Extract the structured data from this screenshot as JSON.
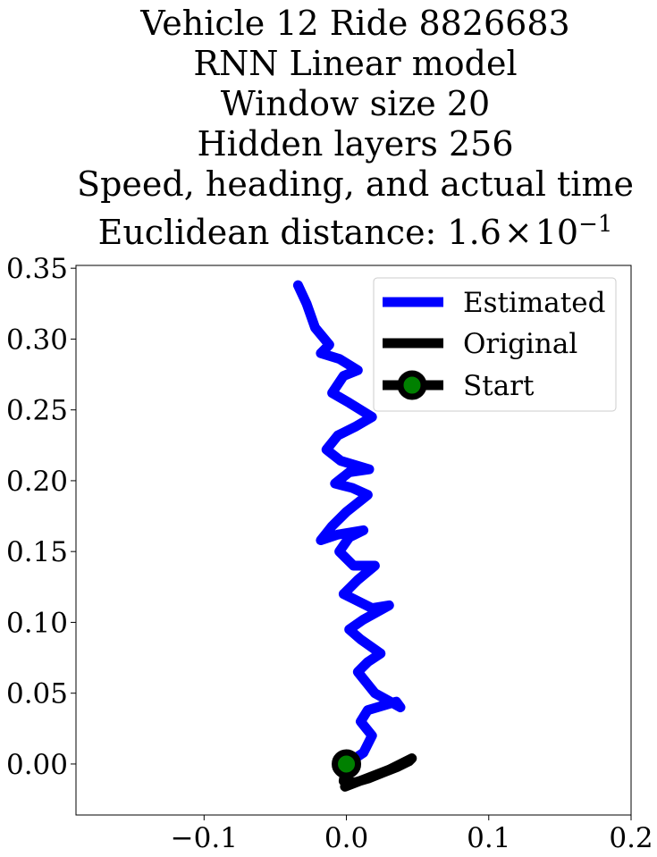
{
  "title_lines": [
    "Vehicle 12 Ride 8826683",
    "RNN Linear model",
    "Window size 20",
    "Hidden layers 256",
    "Speed, heading, and actual time"
  ],
  "distance_prefix": "Euclidean distance: 1.6",
  "distance_times": "×",
  "distance_base": "10",
  "distance_exponent": "−1",
  "chart_data": {
    "type": "line",
    "xlim": [
      -0.19,
      0.2
    ],
    "ylim": [
      -0.036,
      0.352
    ],
    "xticks": [
      -0.1,
      0.0,
      0.1,
      0.2
    ],
    "xtick_labels": [
      "−0.1",
      "0.0",
      "0.1",
      "0.2"
    ],
    "yticks": [
      0.0,
      0.05,
      0.1,
      0.15,
      0.2,
      0.25,
      0.3,
      0.35
    ],
    "ytick_labels": [
      "0.00",
      "0.05",
      "0.10",
      "0.15",
      "0.20",
      "0.25",
      "0.30",
      "0.35"
    ],
    "grid": false,
    "legend_position": "upper right",
    "series": [
      {
        "name": "Estimated",
        "color": "#0000ff",
        "x": [
          0.0,
          0.012,
          0.018,
          0.01,
          0.015,
          0.035,
          0.038,
          0.02,
          0.008,
          0.015,
          0.024,
          0.01,
          0.002,
          0.012,
          0.03,
          0.018,
          -0.002,
          0.008,
          0.02,
          0.005,
          -0.005,
          0.002,
          0.012,
          -0.006,
          -0.018,
          -0.01,
          0.0,
          0.015,
          0.004,
          -0.008,
          0.002,
          0.016,
          -0.004,
          -0.014,
          -0.006,
          0.006,
          0.018,
          0.002,
          -0.01,
          -0.002,
          0.008,
          -0.005,
          -0.018,
          -0.012,
          -0.022,
          -0.028,
          -0.034
        ],
        "y": [
          0.0,
          0.008,
          0.02,
          0.03,
          0.038,
          0.044,
          0.04,
          0.05,
          0.065,
          0.072,
          0.078,
          0.088,
          0.095,
          0.102,
          0.112,
          0.11,
          0.12,
          0.13,
          0.14,
          0.14,
          0.15,
          0.16,
          0.165,
          0.162,
          0.158,
          0.168,
          0.178,
          0.19,
          0.195,
          0.198,
          0.206,
          0.208,
          0.214,
          0.222,
          0.232,
          0.238,
          0.245,
          0.255,
          0.262,
          0.274,
          0.278,
          0.286,
          0.29,
          0.296,
          0.308,
          0.325,
          0.338
        ]
      },
      {
        "name": "Original",
        "color": "#000000",
        "x": [
          0.0,
          -0.002,
          0.006,
          0.016,
          0.026,
          0.036,
          0.044,
          0.046,
          0.03,
          0.012,
          -0.001
        ],
        "y": [
          0.0,
          -0.012,
          -0.013,
          -0.01,
          -0.006,
          -0.002,
          0.002,
          0.004,
          -0.004,
          -0.011,
          -0.016
        ]
      }
    ],
    "start_point": {
      "name": "Start",
      "x": 0.0,
      "y": 0.0,
      "edge_color": "#000000",
      "face_color": "#008000"
    }
  }
}
